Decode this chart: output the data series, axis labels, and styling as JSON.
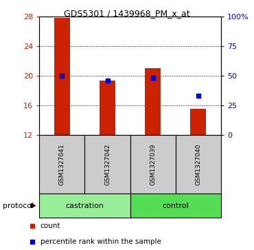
{
  "title": "GDS5301 / 1439968_PM_x_at",
  "samples": [
    "GSM1327041",
    "GSM1327042",
    "GSM1327039",
    "GSM1327040"
  ],
  "bar_values": [
    27.8,
    19.3,
    21.0,
    15.5
  ],
  "bar_bottom": 12,
  "percentile_values": [
    50.0,
    46.0,
    48.0,
    33.0
  ],
  "bar_color": "#cc2200",
  "percentile_color": "#0000cc",
  "ylim_left": [
    12,
    28
  ],
  "ylim_right": [
    0,
    100
  ],
  "yticks_left": [
    12,
    16,
    20,
    24,
    28
  ],
  "yticks_right": [
    0,
    25,
    50,
    75,
    100
  ],
  "ytick_labels_right": [
    "0",
    "25",
    "50",
    "75",
    "100%"
  ],
  "groups": [
    {
      "label": "castration",
      "indices": [
        0,
        1
      ],
      "color": "#99ee99"
    },
    {
      "label": "control",
      "indices": [
        2,
        3
      ],
      "color": "#55dd55"
    }
  ],
  "protocol_label": "protocol",
  "legend_count_label": "count",
  "legend_percentile_label": "percentile rank within the sample",
  "background_color": "#ffffff",
  "plot_bg_color": "#ffffff",
  "left_tick_color": "#cc2200",
  "right_tick_color": "#0000cc",
  "bar_width": 0.35,
  "sample_bg_color": "#cccccc"
}
